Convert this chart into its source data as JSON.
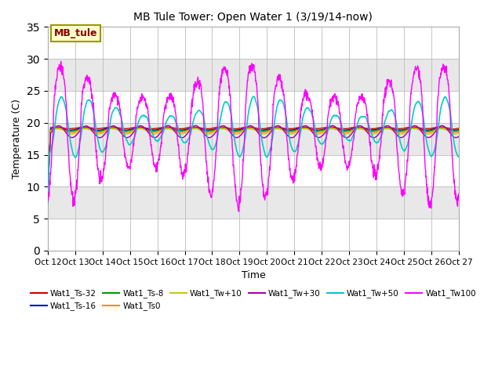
{
  "title": "MB Tule Tower: Open Water 1 (3/19/14-now)",
  "xlabel": "Time",
  "ylabel": "Temperature (C)",
  "ylim": [
    0,
    35
  ],
  "yticks": [
    0,
    5,
    10,
    15,
    20,
    25,
    30,
    35
  ],
  "xtick_labels": [
    "Oct 12",
    "Oct 13",
    "Oct 14",
    "Oct 15",
    "Oct 16",
    "Oct 17",
    "Oct 18",
    "Oct 19",
    "Oct 20",
    "Oct 21",
    "Oct 22",
    "Oct 23",
    "Oct 24",
    "Oct 25",
    "Oct 26",
    "Oct 27"
  ],
  "series_colors": {
    "Wat1_Ts-32": "#cc0000",
    "Wat1_Ts-16": "#0000cc",
    "Wat1_Ts-8": "#009900",
    "Wat1_Ts0": "#ff8800",
    "Wat1_Tw+10": "#cccc00",
    "Wat1_Tw+30": "#aa00aa",
    "Wat1_Tw+50": "#00cccc",
    "Wat1_Tw100": "#ff00ff"
  },
  "legend_box_color": "#ffffcc",
  "legend_box_edge": "#999900",
  "legend_box_text": "#880000",
  "legend_box_label": "MB_tule",
  "bg_color": "#ffffff",
  "plot_bg_color": "#ffffff",
  "band_color": "#e8e8e8"
}
